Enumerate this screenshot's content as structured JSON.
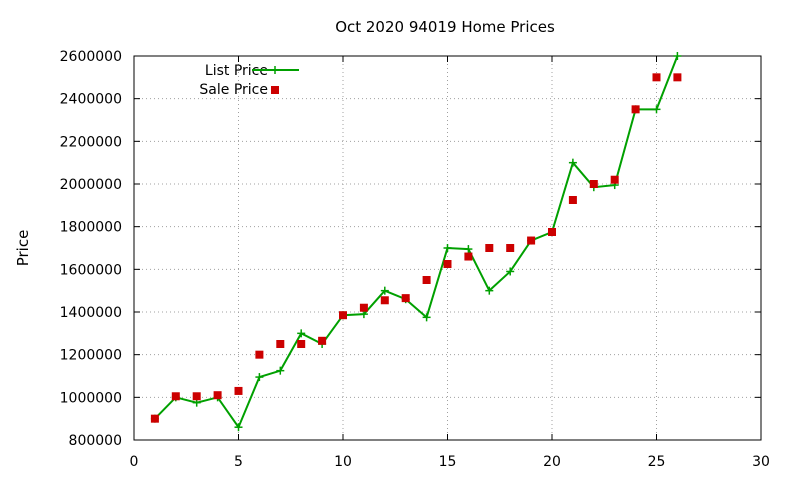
{
  "chart_data": {
    "type": "line",
    "title": "Oct 2020 94019 Home Prices",
    "ylabel": "Price",
    "xlabel": "",
    "xlim": [
      0,
      30
    ],
    "ylim": [
      800000,
      2600000
    ],
    "xticks": [
      "0",
      "5",
      "10",
      "15",
      "20",
      "25",
      "30"
    ],
    "yticks": [
      "800000",
      "1000000",
      "1200000",
      "1400000",
      "1600000",
      "1800000",
      "2000000",
      "2200000",
      "2400000",
      "2600000"
    ],
    "grid": true,
    "legend_position": "top-left",
    "series": [
      {
        "name": "List Price",
        "style": "linespoints",
        "color": "#00a000",
        "x": [
          1,
          2,
          3,
          4,
          5,
          6,
          7,
          8,
          9,
          10,
          11,
          12,
          13,
          14,
          15,
          16,
          17,
          18,
          19,
          20,
          21,
          22,
          23,
          24,
          25,
          26
        ],
        "y": [
          900000,
          1000000,
          975000,
          1000000,
          860000,
          1095000,
          1125000,
          1300000,
          1250000,
          1385000,
          1390000,
          1500000,
          1460000,
          1375000,
          1700000,
          1695000,
          1500000,
          1590000,
          1735000,
          1775000,
          2100000,
          1985000,
          1995000,
          2350000,
          2350000,
          2600000
        ]
      },
      {
        "name": "Sale Price",
        "style": "points",
        "color": "#cc0000",
        "x": [
          1,
          2,
          3,
          4,
          5,
          6,
          7,
          8,
          9,
          10,
          11,
          12,
          13,
          14,
          15,
          16,
          17,
          18,
          19,
          20,
          21,
          22,
          23,
          24,
          25,
          26
        ],
        "y": [
          900000,
          1005000,
          1005000,
          1010000,
          1030000,
          1200000,
          1250000,
          1250000,
          1265000,
          1385000,
          1420000,
          1455000,
          1465000,
          1550000,
          1625000,
          1660000,
          1700000,
          1700000,
          1735000,
          1775000,
          1925000,
          2000000,
          2020000,
          2350000,
          2500000,
          2500000
        ]
      }
    ]
  }
}
